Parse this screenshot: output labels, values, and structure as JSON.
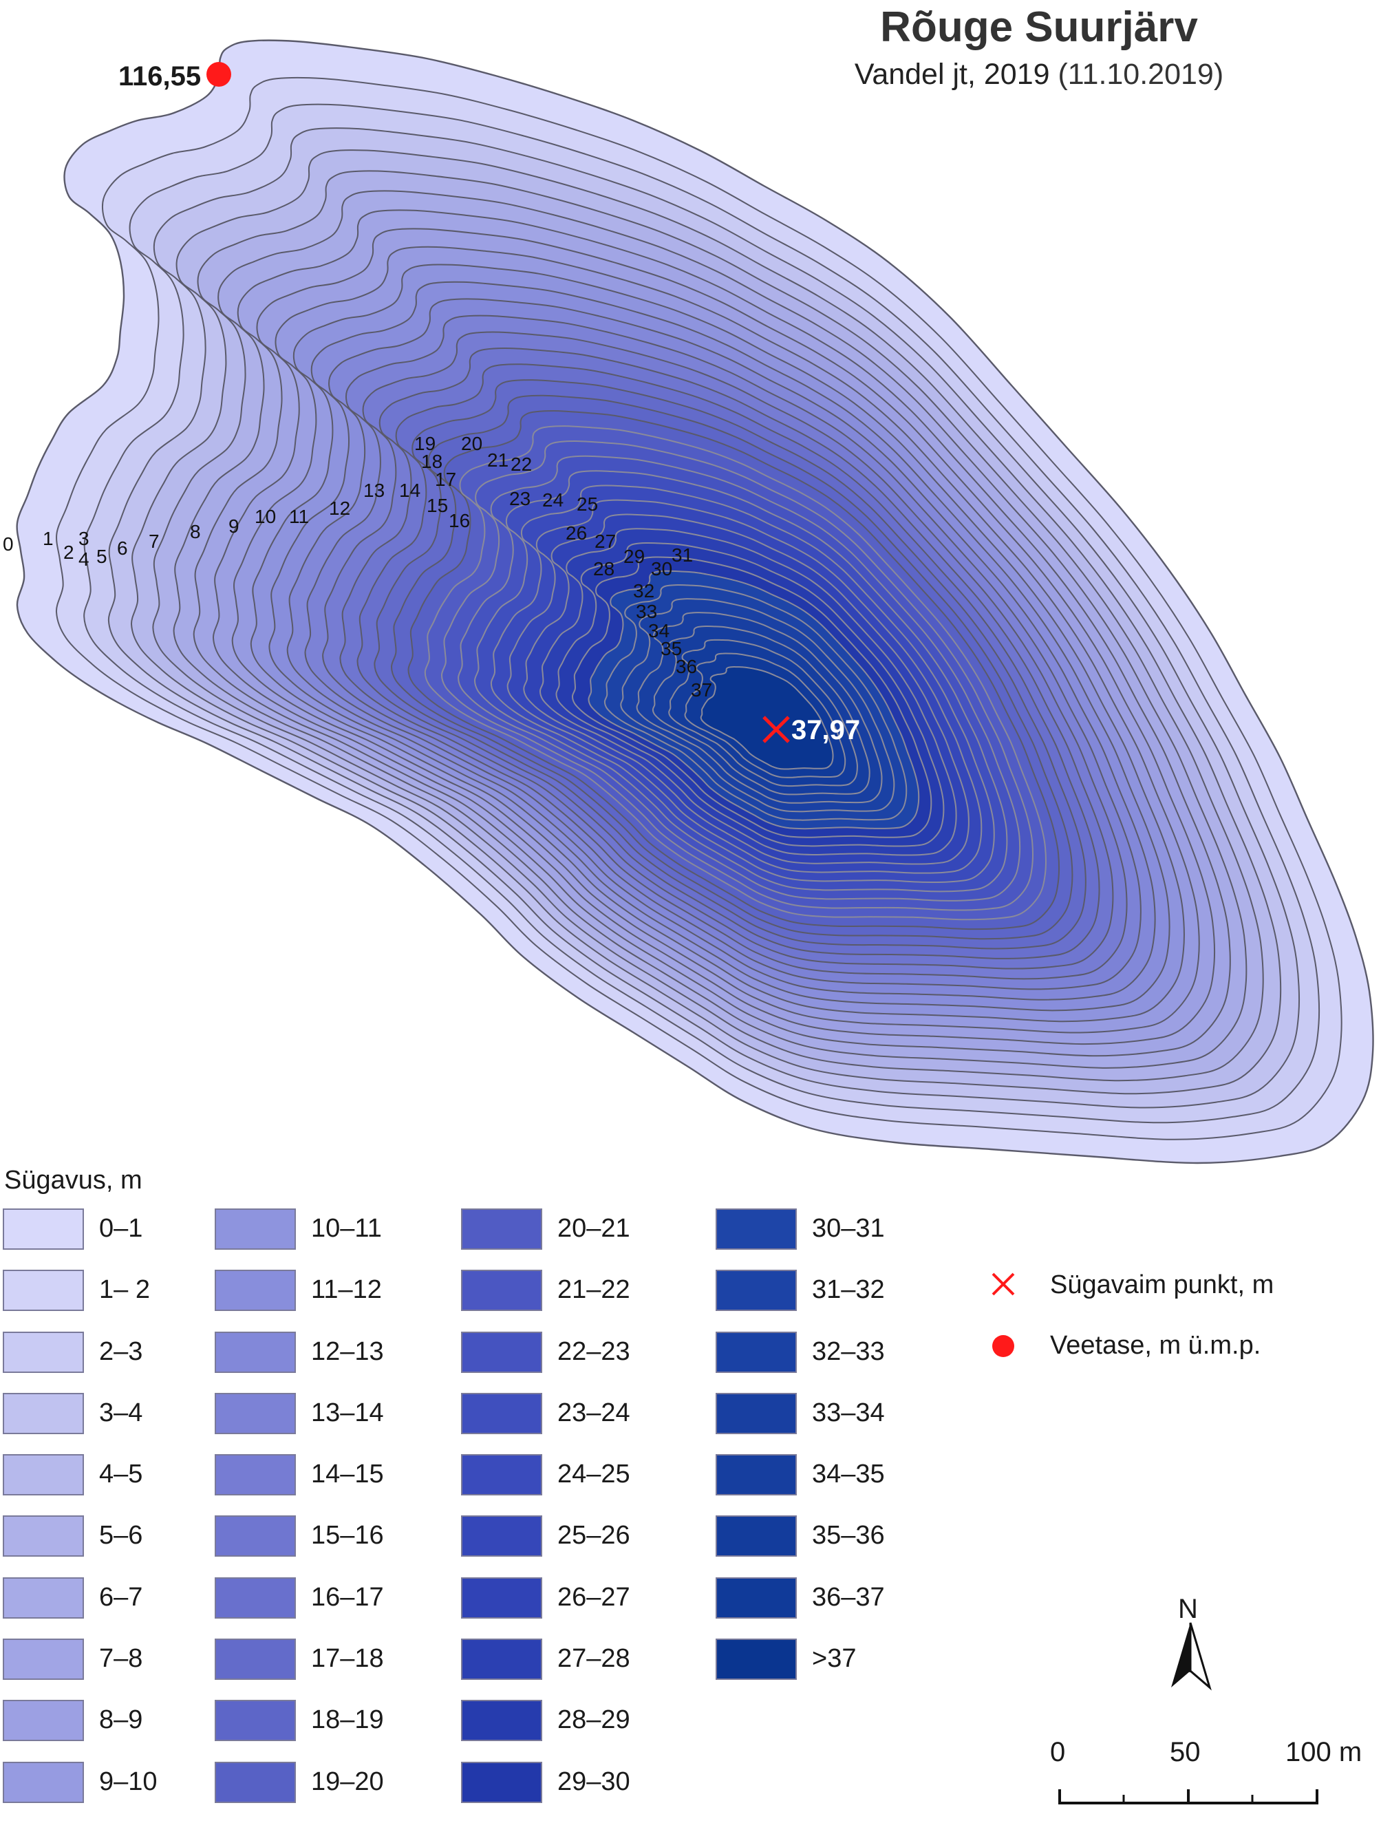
{
  "title": "Rõuge Suurjärv",
  "subtitle": {
    "main": "Vandel jt, 2019",
    "date": "(11.10.2019)"
  },
  "water_level": {
    "label": "116,55",
    "color": "#ff0000"
  },
  "deepest_point": {
    "label": "37,97",
    "color": "#ff0000"
  },
  "contour_labels": [
    "0",
    "1",
    "2",
    "3",
    "4",
    "5",
    "6",
    "7",
    "8",
    "9",
    "10",
    "11",
    "12",
    "13",
    "14",
    "15",
    "16",
    "17",
    "18",
    "19",
    "20",
    "21",
    "22",
    "23",
    "24",
    "25",
    "26",
    "27",
    "28",
    "29",
    "30",
    "31",
    "32",
    "33",
    "34",
    "35",
    "36",
    "37"
  ],
  "legend": {
    "title": "Sügavus, m",
    "columns": [
      [
        {
          "label": "0–1",
          "color": "#d8d9fb"
        },
        {
          "label": "1– 2",
          "color": "#d2d3f8"
        },
        {
          "label": "2–3",
          "color": "#c9cbf4"
        },
        {
          "label": "3–4",
          "color": "#c0c2f0"
        },
        {
          "label": "4–5",
          "color": "#b6b9ec"
        },
        {
          "label": "5–6",
          "color": "#aeb1e9"
        },
        {
          "label": "6–7",
          "color": "#a7abe7"
        },
        {
          "label": "7–8",
          "color": "#a1a5e5"
        },
        {
          "label": "8–9",
          "color": "#9ca0e3"
        },
        {
          "label": "9–10",
          "color": "#969be1"
        }
      ],
      [
        {
          "label": "10–11",
          "color": "#8e94de"
        },
        {
          "label": "11–12",
          "color": "#888edc"
        },
        {
          "label": "12–13",
          "color": "#8288d9"
        },
        {
          "label": "13–14",
          "color": "#7c82d6"
        },
        {
          "label": "14–15",
          "color": "#767cd3"
        },
        {
          "label": "15–16",
          "color": "#6f76d0"
        },
        {
          "label": "16–17",
          "color": "#6970cd"
        },
        {
          "label": "17–18",
          "color": "#636bca"
        },
        {
          "label": "18–19",
          "color": "#5d66c8"
        },
        {
          "label": "19–20",
          "color": "#5761c5"
        }
      ],
      [
        {
          "label": "20–21",
          "color": "#515cc4"
        },
        {
          "label": "21–22",
          "color": "#4b57c2"
        },
        {
          "label": "22–23",
          "color": "#4553c0"
        },
        {
          "label": "23–24",
          "color": "#3f4fbe"
        },
        {
          "label": "24–25",
          "color": "#3a4bbc"
        },
        {
          "label": "25–26",
          "color": "#3547b9"
        },
        {
          "label": "26–27",
          "color": "#3043b6"
        },
        {
          "label": "27–28",
          "color": "#2b40b2"
        },
        {
          "label": "28–29",
          "color": "#263cae"
        },
        {
          "label": "29–30",
          "color": "#2238aa"
        }
      ],
      [
        {
          "label": "30–31",
          "color": "#1e45a8"
        },
        {
          "label": "31–32",
          "color": "#1c43a6"
        },
        {
          "label": "32–33",
          "color": "#1a41a4"
        },
        {
          "label": "33–34",
          "color": "#183fa1"
        },
        {
          "label": "34–35",
          "color": "#163e9f"
        },
        {
          "label": "35–36",
          "color": "#133c9c"
        },
        {
          "label": "36–37",
          "color": "#103a99"
        },
        {
          "label": ">37",
          "color": "#0a3590"
        }
      ]
    ]
  },
  "symbols": {
    "deepest": {
      "label": "Sügavaim punkt, m",
      "icon": "red-x-icon",
      "color": "#ff0000"
    },
    "water_level": {
      "label": "Veetase, m ü.m.p.",
      "icon": "red-dot-icon",
      "color": "#ff0000"
    }
  },
  "north_arrow": {
    "label": "N"
  },
  "scale_bar": {
    "labels": [
      "0",
      "50",
      "100 m"
    ]
  }
}
